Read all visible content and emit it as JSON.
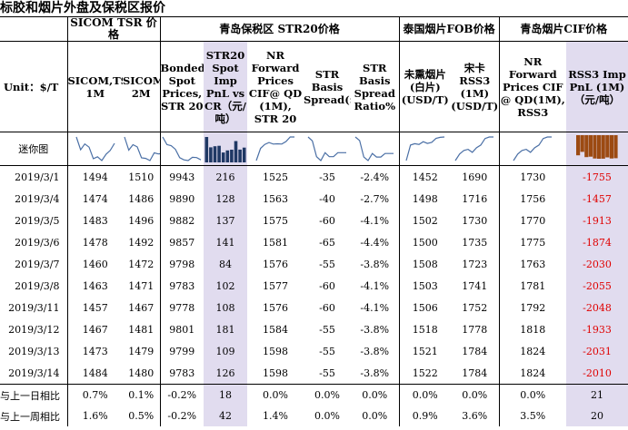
{
  "title": "标胶和烟片外盘及保税区报价",
  "groups": {
    "sicom": "SICOM TSR 价格",
    "qingdao_str20": "青岛保税区 STR20价格",
    "thai_fob": "泰国烟片FOB价格",
    "qingdao_cif": "青岛烟片CIF价格"
  },
  "unit_label": "Unit：$/T",
  "headers": [
    "SICOM,TSR, 1M",
    "SICOM,TSR, 2M",
    "Bonded Spot Prices, STR 20",
    "STR20 Spot Imp PnL vs CR（元/吨）",
    "NR Forward Prices CIF@ QD (1M), STR 20",
    "STR Basis Spread($/T)",
    "STR Basis Spread Ratio%",
    "未熏烟片(白片) (USD/T)",
    "宋卡RSS3 (1M) (USD/T)",
    "NR Forward Prices CIF @ QD(1M), RSS3",
    "RSS3 Imp PnL (1M)（元/吨）"
  ],
  "sparkline_label": "迷你图",
  "rows": [
    {
      "date": "2019/3/1",
      "values": [
        "1494",
        "1510",
        "9943",
        "216",
        "1525",
        "-35",
        "-2.4%",
        "1452",
        "1690",
        "1730",
        "-1755"
      ]
    },
    {
      "date": "2019/3/4",
      "values": [
        "1474",
        "1486",
        "9890",
        "128",
        "1563",
        "-40",
        "-2.7%",
        "1498",
        "1716",
        "1756",
        "-1457"
      ]
    },
    {
      "date": "2019/3/5",
      "values": [
        "1483",
        "1496",
        "9882",
        "137",
        "1575",
        "-60",
        "-4.1%",
        "1502",
        "1730",
        "1770",
        "-1913"
      ]
    },
    {
      "date": "2019/3/6",
      "values": [
        "1478",
        "1492",
        "9857",
        "141",
        "1581",
        "-65",
        "-4.4%",
        "1500",
        "1735",
        "1775",
        "-1874"
      ]
    },
    {
      "date": "2019/3/7",
      "values": [
        "1460",
        "1472",
        "9798",
        "84",
        "1576",
        "-55",
        "-3.8%",
        "1508",
        "1723",
        "1763",
        "-2030"
      ]
    },
    {
      "date": "2019/3/8",
      "values": [
        "1463",
        "1471",
        "9783",
        "102",
        "1577",
        "-60",
        "-4.1%",
        "1503",
        "1741",
        "1781",
        "-2055"
      ]
    },
    {
      "date": "2019/3/11",
      "values": [
        "1457",
        "1467",
        "9778",
        "108",
        "1576",
        "-60",
        "-4.1%",
        "1506",
        "1752",
        "1792",
        "-2048"
      ]
    },
    {
      "date": "2019/3/12",
      "values": [
        "1467",
        "1481",
        "9801",
        "181",
        "1584",
        "-55",
        "-3.8%",
        "1518",
        "1778",
        "1818",
        "-1933"
      ]
    },
    {
      "date": "2019/3/13",
      "values": [
        "1473",
        "1479",
        "9799",
        "109",
        "1598",
        "-55",
        "-3.8%",
        "1521",
        "1784",
        "1824",
        "-2031"
      ]
    },
    {
      "date": "2019/3/14",
      "values": [
        "1484",
        "1480",
        "9783",
        "126",
        "1598",
        "-55",
        "-3.8%",
        "1522",
        "1784",
        "1824",
        "-2010"
      ]
    }
  ],
  "changes": [
    {
      "label": "与上一日相比",
      "values": [
        "0.7%",
        "0.1%",
        "-0.2%",
        "18",
        "0.0%",
        "0.0%",
        "0.0%",
        "0.0%",
        "0.0%",
        "0.0%",
        "21"
      ]
    },
    {
      "label": "与上一周相比",
      "values": [
        "1.6%",
        "0.5%",
        "-0.2%",
        "42",
        "1.4%",
        "0.0%",
        "0.0%",
        "0.9%",
        "3.6%",
        "3.5%",
        "20"
      ]
    }
  ],
  "colors": {
    "highlight_bg": "#e1dcef",
    "sparkline": "#4a6fa5",
    "column_bars": "#1f3864",
    "negative_bars": "#9c4a12",
    "negative_text": "#e00000"
  }
}
